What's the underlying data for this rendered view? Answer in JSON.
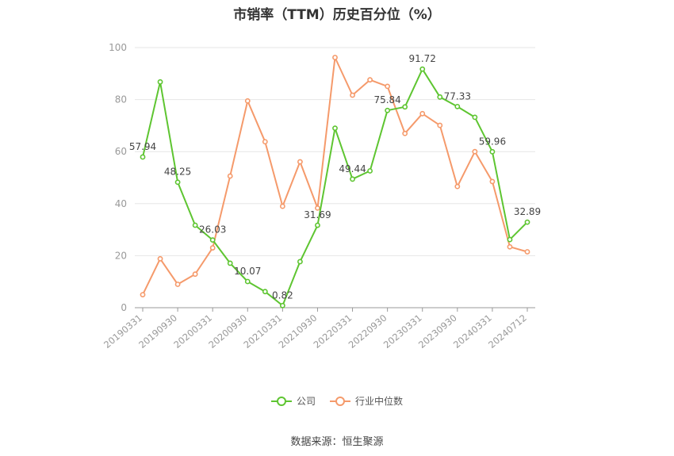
{
  "chart_data": {
    "type": "line",
    "title": "市销率（TTM）历史百分位（%）",
    "x_tick_labels": [
      "20190331",
      "20190930",
      "20200331",
      "20200930",
      "20210331",
      "20210930",
      "20220331",
      "20220930",
      "20230331",
      "20230930",
      "20240331",
      "20240712"
    ],
    "ylim": [
      0,
      100
    ],
    "y_ticks": [
      0,
      20,
      40,
      60,
      80,
      100
    ],
    "grid": true,
    "legend_position": "bottom",
    "series": [
      {
        "name": "公司",
        "color": "#5ec531",
        "values": [
          57.94,
          86.8,
          48.25,
          31.7,
          26.03,
          17.1,
          10.07,
          6.2,
          0.82,
          17.7,
          31.69,
          69.0,
          49.44,
          52.6,
          75.84,
          77.2,
          91.72,
          81.0,
          77.33,
          73.2,
          59.96,
          26.2,
          32.89
        ],
        "data_labels": [
          "57.94",
          "",
          "48.25",
          "",
          "26.03",
          "",
          "10.07",
          "",
          "0.82",
          "",
          "31.69",
          "",
          "49.44",
          "",
          "75.84",
          "",
          "91.72",
          "",
          "77.33",
          "",
          "59.96",
          "",
          "32.89"
        ]
      },
      {
        "name": "行业中位数",
        "color": "#f59a6b",
        "values": [
          5.0,
          18.8,
          9.0,
          12.9,
          23.0,
          50.6,
          79.5,
          63.8,
          39.0,
          56.1,
          38.3,
          96.2,
          81.7,
          87.6,
          85.1,
          67.0,
          74.6,
          70.1,
          46.6,
          60.0,
          48.5,
          23.4,
          21.5
        ]
      }
    ]
  },
  "legend": [
    {
      "label": "公司",
      "color": "#5ec531"
    },
    {
      "label": "行业中位数",
      "color": "#f59a6b"
    }
  ],
  "source_text": "数据来源：恒生聚源"
}
